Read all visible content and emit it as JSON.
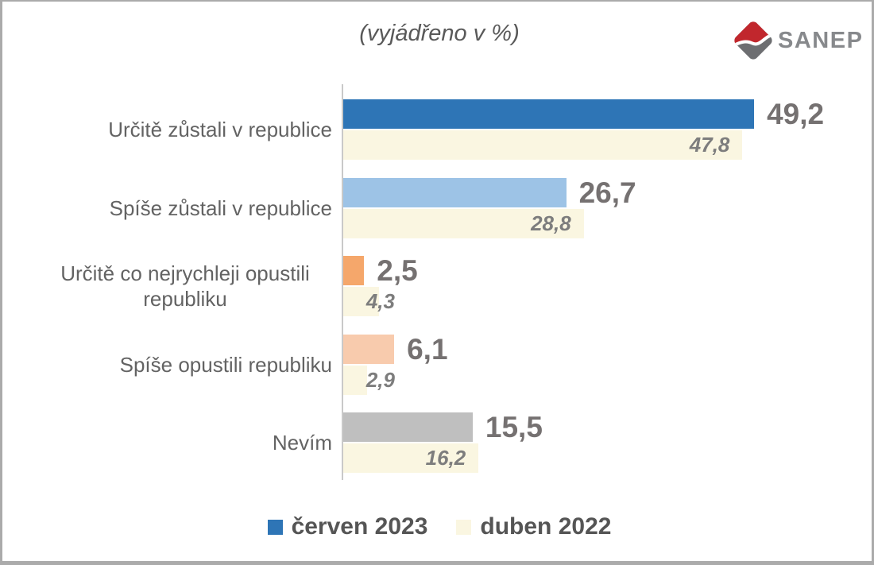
{
  "title": {
    "text": "(vyjádřeno v %)"
  },
  "logo": {
    "text": "SANEP",
    "red": "#C1272D",
    "gray": "#6D6E71",
    "text_color": "#87898C"
  },
  "legend": {
    "items": [
      {
        "label": "červen 2023",
        "color": "#2E75B6"
      },
      {
        "label": "duben 2022",
        "color": "#FAF6E1"
      }
    ]
  },
  "chart_data": {
    "type": "bar",
    "orientation": "horizontal",
    "title": "(vyjádřeno v %)",
    "xlabel": "",
    "ylabel": "",
    "xlim": [
      0,
      52
    ],
    "grid": false,
    "legend_position": "bottom",
    "categories": [
      "Určitě zůstali v republice",
      "Spíše zůstali v republice",
      "Určitě co nejrychleji opustili republiku",
      "Spíše opustili republiku",
      "Nevím"
    ],
    "series": [
      {
        "name": "červen 2023",
        "values": [
          49.2,
          26.7,
          2.5,
          6.1,
          15.5
        ],
        "value_labels": [
          "49,2",
          "26,7",
          "2,5",
          "6,1",
          "15,5"
        ],
        "bar_colors": [
          "#2E75B6",
          "#9DC3E6",
          "#F5A76B",
          "#F8CBAD",
          "#BFBFBF"
        ]
      },
      {
        "name": "duben 2022",
        "values": [
          47.8,
          28.8,
          4.3,
          2.9,
          16.2
        ],
        "value_labels": [
          "47,8",
          "28,8",
          "4,3",
          "2,9",
          "16,2"
        ],
        "bar_colors": [
          "#FAF6E1",
          "#FAF6E1",
          "#FAF6E1",
          "#FAF6E1",
          "#FAF6E1"
        ]
      }
    ]
  },
  "colors": {
    "axis": "#C9C9C9",
    "value_bold": "#757171",
    "value_italic": "#7D7D7D",
    "category_label": "#636363",
    "legend_text": "#555555",
    "frame_border": "#ABABAB",
    "background": "#FFFFFF"
  }
}
